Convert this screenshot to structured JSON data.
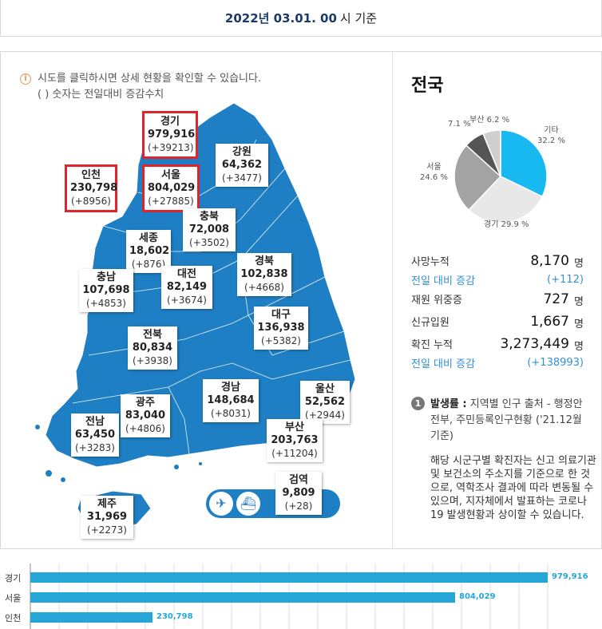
{
  "header": {
    "date": "2022년 03.01. 00",
    "suffix": "시 기준"
  },
  "info": {
    "line1": "시도를 클릭하시면 상세 현황을 확인할 수 있습니다.",
    "line2": "( ) 숫자는 전일대비 증감수치"
  },
  "regions": [
    {
      "name": "경기",
      "value": "979,916",
      "diff": "(+39213)"
    },
    {
      "name": "강원",
      "value": "64,362",
      "diff": "(+3477)"
    },
    {
      "name": "인천",
      "value": "230,798",
      "diff": "(+8956)"
    },
    {
      "name": "서울",
      "value": "804,029",
      "diff": "(+27885)"
    },
    {
      "name": "충북",
      "value": "72,008",
      "diff": "(+3502)"
    },
    {
      "name": "세종",
      "value": "18,602",
      "diff": "(+876)"
    },
    {
      "name": "경북",
      "value": "102,838",
      "diff": "(+4668)"
    },
    {
      "name": "충남",
      "value": "107,698",
      "diff": "(+4853)"
    },
    {
      "name": "대전",
      "value": "82,149",
      "diff": "(+3674)"
    },
    {
      "name": "대구",
      "value": "136,938",
      "diff": "(+5382)"
    },
    {
      "name": "전북",
      "value": "80,834",
      "diff": "(+3938)"
    },
    {
      "name": "울산",
      "value": "52,562",
      "diff": "(+2944)"
    },
    {
      "name": "경남",
      "value": "148,684",
      "diff": "(+8031)"
    },
    {
      "name": "광주",
      "value": "83,040",
      "diff": "(+4806)"
    },
    {
      "name": "전남",
      "value": "63,450",
      "diff": "(+3283)"
    },
    {
      "name": "부산",
      "value": "203,763",
      "diff": "(+11204)"
    },
    {
      "name": "검역",
      "value": "9,809",
      "diff": "(+28)"
    },
    {
      "name": "제주",
      "value": "31,969",
      "diff": "(+2273)"
    }
  ],
  "travel_icons": [
    "airplane-icon",
    "ship-icon"
  ],
  "summary": {
    "title": "전국",
    "pie": [
      {
        "label": "기타",
        "pct": "32.2 %",
        "value": 32.2,
        "color": "#18b8f0"
      },
      {
        "label": "경기",
        "pct": "29.9 %",
        "value": 29.9,
        "color": "#e8e8e8"
      },
      {
        "label": "서울",
        "pct": "24.6 %",
        "value": 24.6,
        "color": "#a3a3a3"
      },
      {
        "label": "",
        "pct": "7.1 %",
        "value": 7.1,
        "color": "#555555"
      },
      {
        "label": "부산",
        "pct": "6.2 %",
        "value": 6.2,
        "color": "#cfcfcf"
      }
    ],
    "stats": [
      {
        "label": "사망누적",
        "value": "8,170",
        "unit": "명"
      },
      {
        "label": "전일 대비 증감",
        "value": "(+112)",
        "unit": ""
      },
      {
        "label": "재원 위중증",
        "value": "727",
        "unit": "명"
      },
      {
        "label": "신규입원",
        "value": "1,667",
        "unit": "명"
      },
      {
        "label": "확진 누적",
        "value": "3,273,449",
        "unit": "명"
      },
      {
        "label": "전일 대비 증감",
        "value": "(+138993)",
        "unit": ""
      }
    ],
    "note": {
      "num": "1",
      "title": "발생률 :",
      "text": " 지역별 인구 출처 - 행정안전부, 주민등록인구현황 ('21.12월 기준)",
      "body": "해당 시군구별 확진자는 신고 의료기관 및 보건소의 주소지를 기준으로 한 것으로, 역학조사 결과에 따라 변동될 수 있으며, 지자체에서 발표하는 코로나19 발생현황과 상이할 수 있습니다."
    }
  },
  "chart_data": {
    "type": "bar",
    "categories": [
      "경기",
      "서울",
      "인천"
    ],
    "values": [
      979916,
      804029,
      230798
    ],
    "value_labels": [
      "979,916",
      "804,029",
      "230,798"
    ],
    "color": "#26a6d6"
  }
}
